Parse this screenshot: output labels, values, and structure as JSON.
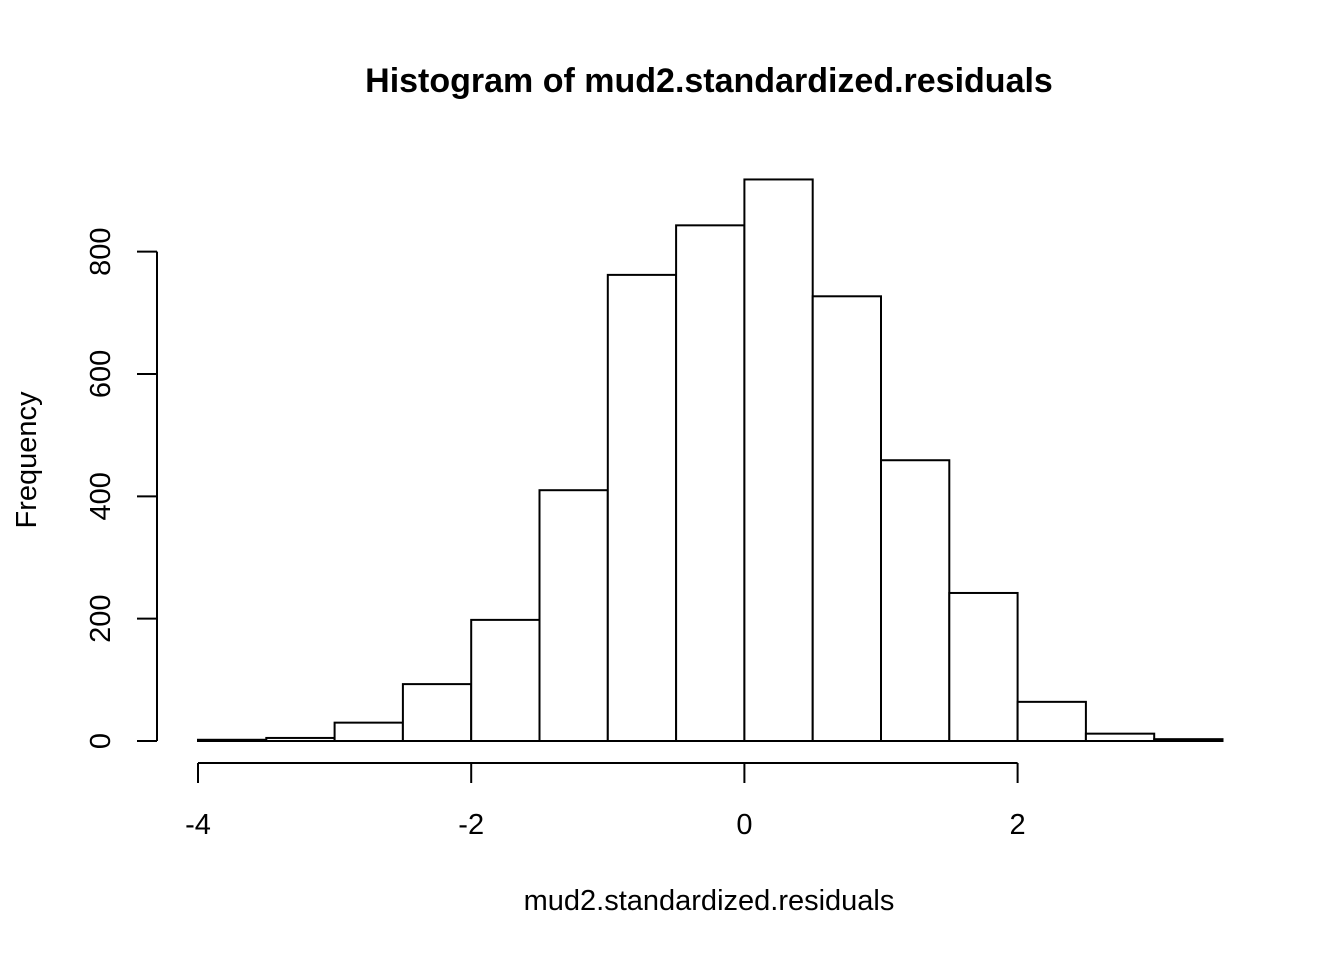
{
  "chart_data": {
    "type": "bar",
    "subtype": "histogram",
    "title": "Histogram of mud2.standardized.residuals",
    "xlabel": "mud2.standardized.residuals",
    "ylabel": "Frequency",
    "xlim": [
      -4,
      3.5
    ],
    "ylim": [
      0,
      920
    ],
    "x_ticks": [
      -4,
      -2,
      0,
      2
    ],
    "x_tick_labels": [
      "-4",
      "-2",
      "0",
      "2"
    ],
    "y_ticks": [
      0,
      200,
      400,
      600,
      800
    ],
    "y_tick_labels": [
      "0",
      "200",
      "400",
      "600",
      "800"
    ],
    "grid": false,
    "legend": "none",
    "bins": [
      {
        "x0": -4.0,
        "x1": -3.5,
        "value": 2
      },
      {
        "x0": -3.5,
        "x1": -3.0,
        "value": 5
      },
      {
        "x0": -3.0,
        "x1": -2.5,
        "value": 30
      },
      {
        "x0": -2.5,
        "x1": -2.0,
        "value": 93
      },
      {
        "x0": -2.0,
        "x1": -1.5,
        "value": 198
      },
      {
        "x0": -1.5,
        "x1": -1.0,
        "value": 410
      },
      {
        "x0": -1.0,
        "x1": -0.5,
        "value": 762
      },
      {
        "x0": -0.5,
        "x1": 0.0,
        "value": 843
      },
      {
        "x0": 0.0,
        "x1": 0.5,
        "value": 918
      },
      {
        "x0": 0.5,
        "x1": 1.0,
        "value": 727
      },
      {
        "x0": 1.0,
        "x1": 1.5,
        "value": 459
      },
      {
        "x0": 1.5,
        "x1": 2.0,
        "value": 242
      },
      {
        "x0": 2.0,
        "x1": 2.5,
        "value": 64
      },
      {
        "x0": 2.5,
        "x1": 3.0,
        "value": 12
      },
      {
        "x0": 3.0,
        "x1": 3.5,
        "value": 3
      }
    ],
    "colors": {
      "bar_fill": "#ffffff",
      "bar_stroke": "#000000",
      "axis": "#000000",
      "background": "#ffffff"
    }
  }
}
